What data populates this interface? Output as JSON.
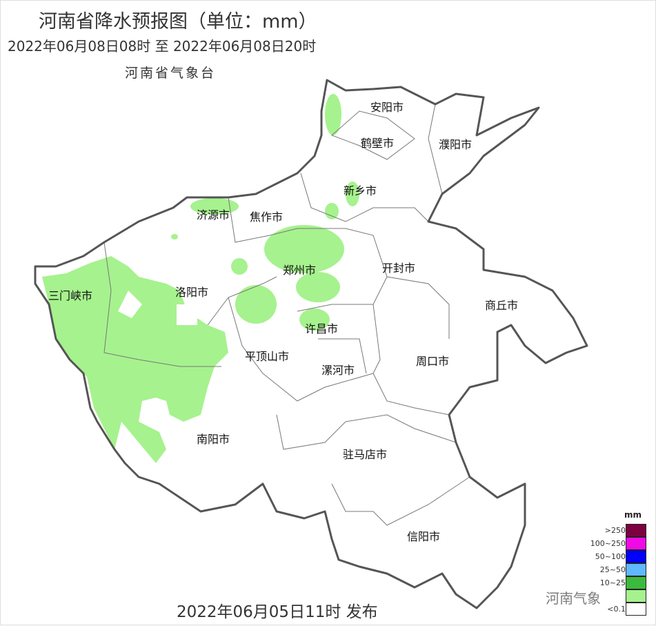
{
  "header": {
    "title": "河南省降水预报图（单位：mm）",
    "period": "2022年06月08日08时  至  2022年06月08日20时",
    "organization": "河南省气象台"
  },
  "footer": {
    "issued": "2022年06月05日11时 发布"
  },
  "watermark": "河南气象",
  "cities": [
    "安阳市",
    "鹤壁市",
    "濮阳市",
    "新乡市",
    "济源市",
    "焦作市",
    "郑州市",
    "开封市",
    "商丘市",
    "三门峡市",
    "洛阳市",
    "许昌市",
    "平顶山市",
    "漯河市",
    "周口市",
    "南阳市",
    "驻马店市",
    "信阳市"
  ],
  "legend": {
    "unit": "mm",
    "items": [
      {
        "label": ">250",
        "color": "#7d0040"
      },
      {
        "label": "100~250",
        "color": "#f00ae6"
      },
      {
        "label": "50~100",
        "color": "#0000fe"
      },
      {
        "label": "25~50",
        "color": "#60b8ff"
      },
      {
        "label": "10~25",
        "color": "#3cba3c"
      },
      {
        "label": "",
        "color": "#a6f28e"
      },
      {
        "label": "<0.1",
        "color": "#ffffff"
      }
    ]
  },
  "rain_color": "#a6f28e"
}
